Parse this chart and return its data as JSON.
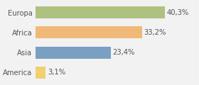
{
  "categories": [
    "Europa",
    "Africa",
    "Asia",
    "America"
  ],
  "values": [
    40.3,
    33.2,
    23.4,
    3.1
  ],
  "labels": [
    "40,3%",
    "33,2%",
    "23,4%",
    "3,1%"
  ],
  "bar_colors": [
    "#aec180",
    "#f0b97a",
    "#7a9fc2",
    "#f0d070"
  ],
  "background_color": "#f2f2f2",
  "xlim": [
    0,
    50
  ],
  "label_fontsize": 7.2,
  "tick_fontsize": 7.2
}
